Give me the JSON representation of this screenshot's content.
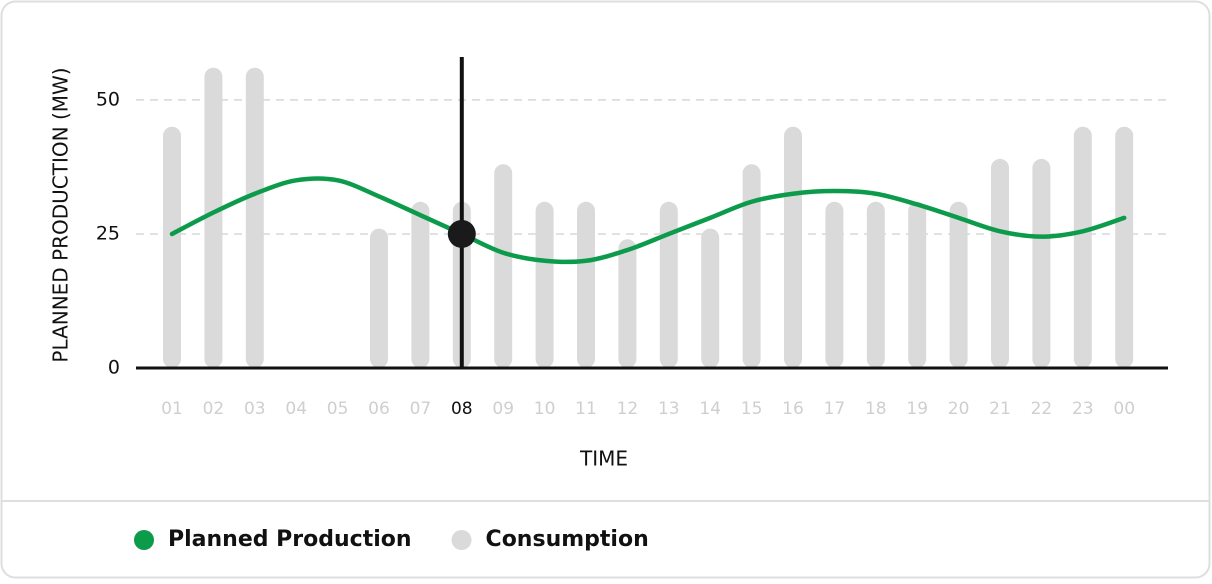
{
  "chart_data": {
    "type": "combo",
    "xlabel": "TIME",
    "ylabel": "PLANNED PRODUCTION (MW)",
    "categories": [
      "01",
      "02",
      "03",
      "04",
      "05",
      "06",
      "07",
      "08",
      "09",
      "10",
      "11",
      "12",
      "13",
      "14",
      "15",
      "16",
      "17",
      "18",
      "19",
      "20",
      "21",
      "22",
      "23",
      "00"
    ],
    "series": [
      {
        "name": "Planned Production",
        "type": "line",
        "color": "#0c9a4b",
        "values": [
          25,
          29,
          32.5,
          35,
          35,
          32,
          28.5,
          25,
          21.5,
          20,
          20,
          22,
          25,
          28,
          31,
          32.5,
          33,
          32.5,
          30.5,
          28,
          25.5,
          24.5,
          25.5,
          28
        ]
      },
      {
        "name": "Consumption",
        "type": "bar",
        "color": "#dadada",
        "values": [
          45,
          56,
          56,
          null,
          null,
          26,
          31,
          31,
          38,
          31,
          31,
          24,
          31,
          26,
          38,
          45,
          31,
          31,
          31,
          31,
          39,
          39,
          45,
          45
        ]
      }
    ],
    "selected_index": 7,
    "ylim": [
      0,
      58
    ],
    "yticks": [
      0,
      25,
      50
    ],
    "grid": true
  }
}
